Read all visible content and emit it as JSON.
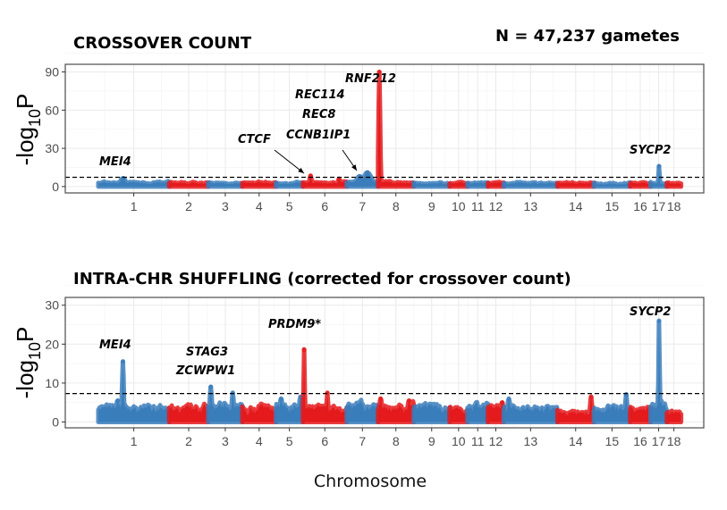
{
  "header": {
    "n_label": "N = 47,237 gametes"
  },
  "colors": {
    "odd_chromosome": "#3a7dbb",
    "even_chromosome": "#e41a1c",
    "threshold": "#000000"
  },
  "chart_data": [
    {
      "type": "scatter",
      "subtype": "manhattan",
      "title": "CROSSOVER COUNT",
      "xlabel": "Chromosome",
      "ylabel_prefix": "-log",
      "ylabel_sub": "10",
      "ylabel_suffix": "P",
      "ylim": [
        -5,
        96
      ],
      "yticks": [
        0,
        30,
        60,
        90
      ],
      "ytick_labels": [
        "0",
        "30",
        "60",
        "90"
      ],
      "threshold": 7.3,
      "chromosomes": [
        "1",
        "2",
        "3",
        "4",
        "5",
        "6",
        "7",
        "8",
        "9",
        "10",
        "11",
        "12",
        "13",
        "14",
        "15",
        "16",
        "17",
        "18"
      ],
      "chromosome_lengths_mb": [
        274,
        151,
        132,
        130,
        104,
        170,
        121,
        138,
        139,
        69,
        79,
        61,
        208,
        141,
        140,
        79,
        63,
        55
      ],
      "baseline_max": [
        3.5,
        3.5,
        3,
        3.5,
        3,
        3.5,
        4,
        3.5,
        3,
        3,
        3,
        3,
        3,
        3,
        3,
        3,
        3.5,
        3
      ],
      "peaks": [
        {
          "chr": "1",
          "pos_mb": 95,
          "value": 6.5,
          "width_mb": 12
        },
        {
          "chr": "6",
          "pos_mb": 30,
          "value": 8.5,
          "width_mb": 4
        },
        {
          "chr": "6",
          "pos_mb": 140,
          "value": 6,
          "width_mb": 5
        },
        {
          "chr": "7",
          "pos_mb": 80,
          "value": 11,
          "width_mb": 16
        },
        {
          "chr": "7",
          "pos_mb": 50,
          "value": 8,
          "width_mb": 14
        },
        {
          "chr": "8",
          "pos_mb": 5,
          "value": 90,
          "width_mb": 3
        },
        {
          "chr": "17",
          "pos_mb": 33,
          "value": 16,
          "width_mb": 2
        }
      ],
      "annotations": [
        {
          "label": "MEI4",
          "chr": "1"
        },
        {
          "label": "CTCF",
          "chr": "6",
          "arrow": true
        },
        {
          "label": "REC114",
          "chr": "7"
        },
        {
          "label": "REC8",
          "chr": "7"
        },
        {
          "label": "CCNB1IP1",
          "chr": "7",
          "arrow": true
        },
        {
          "label": "RNF212",
          "chr": "8"
        },
        {
          "label": "SYCP2",
          "chr": "17"
        }
      ]
    },
    {
      "type": "scatter",
      "subtype": "manhattan",
      "title": "INTRA-CHR SHUFFLING (corrected for crossover count)",
      "xlabel": "Chromosome",
      "ylabel_prefix": "-log",
      "ylabel_sub": "10",
      "ylabel_suffix": "P",
      "ylim": [
        -1.5,
        32
      ],
      "yticks": [
        0,
        10,
        20,
        30
      ],
      "ytick_labels": [
        "0",
        "10",
        "20",
        "30"
      ],
      "threshold": 7.3,
      "chromosomes": [
        "1",
        "2",
        "3",
        "4",
        "5",
        "6",
        "7",
        "8",
        "9",
        "10",
        "11",
        "12",
        "13",
        "14",
        "15",
        "16",
        "17",
        "18"
      ],
      "chromosome_lengths_mb": [
        274,
        151,
        132,
        130,
        104,
        170,
        121,
        138,
        139,
        69,
        79,
        61,
        208,
        141,
        140,
        79,
        63,
        55
      ],
      "baseline_max": [
        4,
        4.5,
        4.5,
        4.5,
        4.5,
        4,
        4.5,
        4.5,
        4,
        4,
        4.5,
        4,
        4,
        3,
        4,
        4,
        4.5,
        3
      ],
      "peaks": [
        {
          "chr": "1",
          "pos_mb": 95,
          "value": 15.5,
          "width_mb": 3
        },
        {
          "chr": "1",
          "pos_mb": 75,
          "value": 5.5,
          "width_mb": 8
        },
        {
          "chr": "3",
          "pos_mb": 10,
          "value": 9,
          "width_mb": 4
        },
        {
          "chr": "3",
          "pos_mb": 95,
          "value": 7.5,
          "width_mb": 4
        },
        {
          "chr": "5",
          "pos_mb": 20,
          "value": 6,
          "width_mb": 6
        },
        {
          "chr": "5",
          "pos_mb": 95,
          "value": 6.5,
          "width_mb": 6
        },
        {
          "chr": "6",
          "pos_mb": 5,
          "value": 18.5,
          "width_mb": 2
        },
        {
          "chr": "6",
          "pos_mb": 95,
          "value": 7.5,
          "width_mb": 3
        },
        {
          "chr": "8",
          "pos_mb": 10,
          "value": 6,
          "width_mb": 6
        },
        {
          "chr": "8",
          "pos_mb": 120,
          "value": 5.5,
          "width_mb": 6
        },
        {
          "chr": "12",
          "pos_mb": 55,
          "value": 5,
          "width_mb": 6
        },
        {
          "chr": "13",
          "pos_mb": 20,
          "value": 6,
          "width_mb": 6
        },
        {
          "chr": "14",
          "pos_mb": 130,
          "value": 6.5,
          "width_mb": 4
        },
        {
          "chr": "15",
          "pos_mb": 125,
          "value": 7,
          "width_mb": 4
        },
        {
          "chr": "17",
          "pos_mb": 33,
          "value": 26,
          "width_mb": 2
        }
      ],
      "annotations": [
        {
          "label": "MEI4",
          "chr": "1"
        },
        {
          "label": "STAG3",
          "chr": "3"
        },
        {
          "label": "ZCWPW1",
          "chr": "3"
        },
        {
          "label": "PRDM9*",
          "chr": "6"
        },
        {
          "label": "SYCP2",
          "chr": "17"
        }
      ]
    }
  ]
}
